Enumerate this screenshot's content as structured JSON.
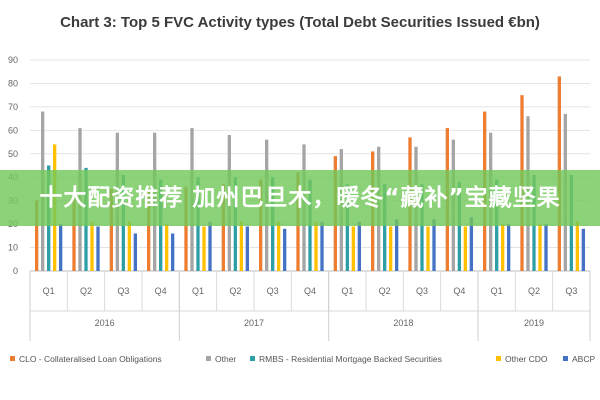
{
  "chart_data": {
    "type": "bar",
    "title": "Chart 3: Top 5 FVC Activity types (Total Debt Securities Issued €bn)",
    "ylim": [
      0,
      90
    ],
    "y_ticks": [
      "0",
      "10",
      "20",
      "30",
      "40",
      "50",
      "60",
      "70",
      "80",
      "90"
    ],
    "grid": true,
    "legend_position": "bottom",
    "years": [
      {
        "label": "2016",
        "quarters": [
          "Q1",
          "Q2",
          "Q3",
          "Q4"
        ]
      },
      {
        "label": "2017",
        "quarters": [
          "Q1",
          "Q2",
          "Q3",
          "Q4"
        ]
      },
      {
        "label": "2018",
        "quarters": [
          "Q1",
          "Q2",
          "Q3",
          "Q4"
        ]
      },
      {
        "label": "2019",
        "quarters": [
          "Q1",
          "Q2",
          "Q3"
        ]
      }
    ],
    "categories": [
      "Q1",
      "Q2",
      "Q3",
      "Q4",
      "Q1",
      "Q2",
      "Q3",
      "Q4",
      "Q1",
      "Q2",
      "Q3",
      "Q4",
      "Q1",
      "Q2",
      "Q3"
    ],
    "series": [
      {
        "name": "CLO - Collateralised Loan Obligations",
        "color": "#ed7d31",
        "values": [
          30,
          31,
          35,
          34,
          36,
          37,
          39,
          42,
          49,
          51,
          57,
          61,
          68,
          75,
          83
        ]
      },
      {
        "name": "Other",
        "color": "#a5a5a5",
        "values": [
          68,
          61,
          59,
          59,
          61,
          58,
          56,
          54,
          52,
          53,
          53,
          56,
          59,
          66,
          67
        ]
      },
      {
        "name": "RMBS - Residential Mortgage Backed Securities",
        "color": "#2e9fa5",
        "values": [
          45,
          44,
          41,
          39,
          40,
          40,
          40,
          39,
          37,
          37,
          37,
          38,
          39,
          41,
          41
        ]
      },
      {
        "name": "Other CDO",
        "color": "#ffc000",
        "values": [
          54,
          21,
          21,
          20,
          19,
          21,
          21,
          21,
          19,
          19,
          19,
          19,
          20,
          20,
          21
        ]
      },
      {
        "name": "ABCP",
        "color": "#4472c4",
        "values": [
          20,
          19,
          16,
          16,
          21,
          19,
          18,
          21,
          21,
          22,
          22,
          23,
          20,
          20,
          18
        ]
      }
    ]
  },
  "overlay": {
    "text": "十大配资推荐 加州巴旦木，暖冬“藏补”宝藏坚果"
  }
}
